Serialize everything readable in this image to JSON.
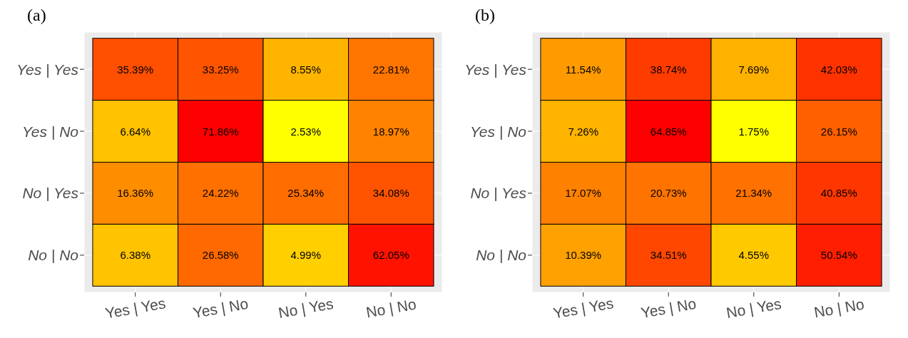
{
  "chart_data": [
    {
      "type": "heatmap",
      "title": "(a)",
      "categories": [
        "Yes | Yes",
        "Yes | No",
        "No | Yes",
        "No | No"
      ],
      "y_categories": [
        "Yes | Yes",
        "Yes | No",
        "No | Yes",
        "No | No"
      ],
      "cells": [
        [
          35.39,
          33.25,
          8.55,
          22.81
        ],
        [
          6.64,
          71.86,
          2.53,
          18.97
        ],
        [
          16.36,
          24.22,
          25.34,
          34.08
        ],
        [
          6.38,
          26.58,
          4.99,
          62.05
        ]
      ],
      "cell_labels": [
        [
          "35.39%",
          "33.25%",
          "8.55%",
          "22.81%"
        ],
        [
          "6.64%",
          "71.86%",
          "2.53%",
          "18.97%"
        ],
        [
          "16.36%",
          "24.22%",
          "25.34%",
          "34.08%"
        ],
        [
          "6.38%",
          "26.58%",
          "4.99%",
          "62.05%"
        ]
      ],
      "grid": true
    },
    {
      "type": "heatmap",
      "title": "(b)",
      "categories": [
        "Yes | Yes",
        "Yes | No",
        "No | Yes",
        "No | No"
      ],
      "y_categories": [
        "Yes | Yes",
        "Yes | No",
        "No | Yes",
        "No | No"
      ],
      "cells": [
        [
          11.54,
          38.74,
          7.69,
          42.03
        ],
        [
          7.26,
          64.85,
          1.75,
          26.15
        ],
        [
          17.07,
          20.73,
          21.34,
          40.85
        ],
        [
          10.39,
          34.51,
          4.55,
          50.54
        ]
      ],
      "cell_labels": [
        [
          "11.54%",
          "38.74%",
          "7.69%",
          "42.03%"
        ],
        [
          "7.26%",
          "64.85%",
          "1.75%",
          "26.15%"
        ],
        [
          "17.07%",
          "20.73%",
          "21.34%",
          "40.85%"
        ],
        [
          "10.39%",
          "34.51%",
          "4.55%",
          "50.54%"
        ]
      ],
      "grid": true
    }
  ]
}
